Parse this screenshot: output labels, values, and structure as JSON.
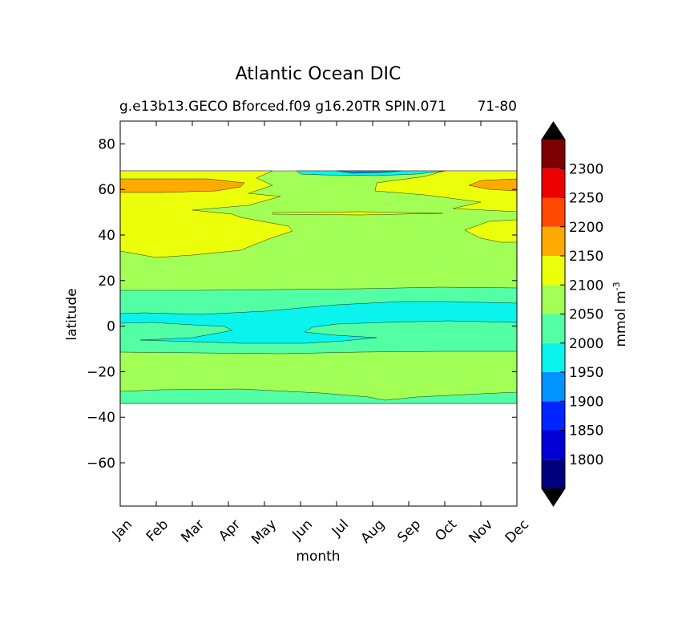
{
  "chart_data": {
    "type": "contour",
    "title": "Atlantic Ocean DIC",
    "subtitle_left": "g.e13b13.GECO Bforced.f09 g16.20TR SPIN.071",
    "subtitle_right": "71-80",
    "xlabel": "month",
    "ylabel": "latitude",
    "x_ticks": [
      "Jan",
      "Feb",
      "Mar",
      "Apr",
      "May",
      "Jun",
      "Jul",
      "Aug",
      "Sep",
      "Oct",
      "Nov",
      "Dec"
    ],
    "y_ticks": [
      80,
      60,
      40,
      20,
      0,
      -20,
      -40,
      -60
    ],
    "ylim": [
      -79,
      90
    ],
    "data_lat_range": [
      -34,
      68
    ],
    "colorbar": {
      "label": "mmol m",
      "label_superscript": "-3",
      "levels": [
        1750,
        1800,
        1850,
        1900,
        1950,
        2000,
        2050,
        2100,
        2150,
        2200,
        2250,
        2300,
        2350
      ],
      "tick_labels": [
        "1800",
        "1850",
        "1900",
        "1950",
        "2000",
        "2050",
        "2100",
        "2150",
        "2200",
        "2250",
        "2300"
      ],
      "tick_values": [
        1800,
        1850,
        1900,
        1950,
        2000,
        2050,
        2100,
        2150,
        2200,
        2250,
        2300
      ],
      "colors": [
        "#00007f",
        "#0000d4",
        "#0024ff",
        "#0094ff",
        "#0af4ed",
        "#53ffa5",
        "#a1ff56",
        "#ecff0a",
        "#ffaa00",
        "#ff4800",
        "#ee0000",
        "#7f0000"
      ],
      "extend_low_color": "#000000",
      "extend_high_color": "#000000"
    },
    "bands": [
      {
        "lat_from": -34,
        "lat_to": -29,
        "value_range": "2000-2050"
      },
      {
        "lat_from": -29,
        "lat_to": -12,
        "value_range": "2050-2100"
      },
      {
        "lat_from": -12,
        "lat_to": -6,
        "value_range": "2000-2050"
      },
      {
        "lat_from": -6,
        "lat_to": 3,
        "value_range": "1950-2000"
      },
      {
        "lat_from": 3,
        "lat_to": 15,
        "value_range": "2000-2050"
      },
      {
        "lat_from": 15,
        "lat_to": 32,
        "value_range": "2050-2100"
      },
      {
        "lat_from": 32,
        "lat_to": 68,
        "value_range": "2100-2150 (Jan-May, Oct-Dec)"
      },
      {
        "lat_from": 58,
        "lat_to": 65,
        "value_range": "2150-2200 (Jan-Apr, Nov-Dec)"
      },
      {
        "lat_from": 65,
        "lat_to": 68,
        "value_range": "1900-2000 (Jul-Aug)"
      }
    ]
  }
}
